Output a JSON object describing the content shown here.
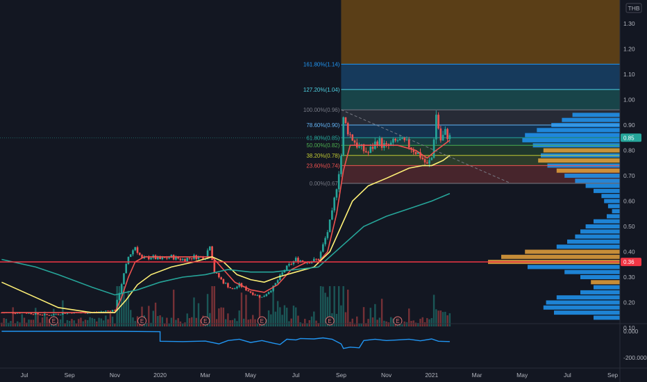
{
  "chart_data": {
    "type": "candlestick",
    "currency": "THB",
    "price_axis": {
      "range": [
        0.13,
        1.42
      ],
      "ticks": [
        "1.30",
        "1.20",
        "1.10",
        "1.00",
        "0.90",
        "0.80",
        "0.70",
        "0.60",
        "0.50",
        "0.40",
        "0.30",
        "0.20",
        "0.10"
      ]
    },
    "indicator_axis": {
      "range": [
        -235000,
        25000
      ],
      "ticks": [
        "0.000",
        "-200.000"
      ]
    },
    "time_axis": {
      "labels": [
        {
          "t": 0.0,
          "label": "Jul"
        },
        {
          "t": 2.0,
          "label": "Sep"
        },
        {
          "t": 4.0,
          "label": "Nov"
        },
        {
          "t": 6.0,
          "label": "2020"
        },
        {
          "t": 8.0,
          "label": "Mar"
        },
        {
          "t": 10.0,
          "label": "May"
        },
        {
          "t": 12.0,
          "label": "Jul"
        },
        {
          "t": 14.0,
          "label": "Sep"
        },
        {
          "t": 16.0,
          "label": "Nov"
        },
        {
          "t": 18.0,
          "label": "2021"
        },
        {
          "t": 20.0,
          "label": "Mar"
        },
        {
          "t": 22.0,
          "label": "May"
        },
        {
          "t": 24.0,
          "label": "Jul"
        },
        {
          "t": 26.0,
          "label": "Sep"
        }
      ]
    },
    "price_path": [
      [
        -1,
        0.16
      ],
      [
        0.0,
        0.16
      ],
      [
        1.0,
        0.15
      ],
      [
        2.0,
        0.16
      ],
      [
        3.0,
        0.16
      ],
      [
        4.0,
        0.17
      ],
      [
        4.2,
        0.24
      ],
      [
        4.4,
        0.31
      ],
      [
        4.6,
        0.38
      ],
      [
        4.9,
        0.42
      ],
      [
        5.2,
        0.37
      ],
      [
        5.6,
        0.38
      ],
      [
        6.0,
        0.37
      ],
      [
        6.5,
        0.38
      ],
      [
        7.0,
        0.37
      ],
      [
        7.5,
        0.38
      ],
      [
        8.0,
        0.38
      ],
      [
        8.2,
        0.43
      ],
      [
        8.4,
        0.32
      ],
      [
        8.8,
        0.28
      ],
      [
        9.2,
        0.25
      ],
      [
        9.5,
        0.27
      ],
      [
        10.0,
        0.24
      ],
      [
        10.5,
        0.22
      ],
      [
        11.0,
        0.26
      ],
      [
        11.5,
        0.33
      ],
      [
        12.0,
        0.37
      ],
      [
        12.5,
        0.36
      ],
      [
        13.0,
        0.37
      ],
      [
        13.4,
        0.48
      ],
      [
        13.6,
        0.55
      ],
      [
        13.8,
        0.66
      ],
      [
        14.0,
        0.78
      ],
      [
        14.1,
        0.92
      ],
      [
        14.4,
        0.86
      ],
      [
        14.8,
        0.81
      ],
      [
        15.2,
        0.79
      ],
      [
        15.6,
        0.84
      ],
      [
        16.0,
        0.81
      ],
      [
        16.5,
        0.84
      ],
      [
        17.0,
        0.82
      ],
      [
        17.5,
        0.78
      ],
      [
        17.8,
        0.74
      ],
      [
        18.0,
        0.77
      ],
      [
        18.2,
        0.94
      ],
      [
        18.4,
        0.84
      ],
      [
        18.6,
        0.87
      ],
      [
        18.8,
        0.85
      ]
    ],
    "moving_averages": [
      {
        "color": "#ef5350",
        "path": [
          [
            -1,
            0.16
          ],
          [
            4.0,
            0.16
          ],
          [
            4.3,
            0.22
          ],
          [
            4.6,
            0.3
          ],
          [
            4.9,
            0.36
          ],
          [
            5.3,
            0.38
          ],
          [
            6.0,
            0.38
          ],
          [
            7.5,
            0.38
          ],
          [
            8.3,
            0.38
          ],
          [
            8.8,
            0.33
          ],
          [
            9.3,
            0.28
          ],
          [
            10.0,
            0.25
          ],
          [
            10.6,
            0.24
          ],
          [
            11.2,
            0.27
          ],
          [
            11.8,
            0.33
          ],
          [
            12.5,
            0.36
          ],
          [
            13.0,
            0.36
          ],
          [
            13.4,
            0.4
          ],
          [
            13.8,
            0.55
          ],
          [
            14.1,
            0.72
          ],
          [
            14.4,
            0.82
          ],
          [
            14.8,
            0.82
          ],
          [
            15.5,
            0.82
          ],
          [
            16.5,
            0.82
          ],
          [
            17.3,
            0.8
          ],
          [
            17.8,
            0.77
          ],
          [
            18.2,
            0.8
          ],
          [
            18.8,
            0.84
          ]
        ]
      },
      {
        "color": "#fff176",
        "path": [
          [
            -1,
            0.28
          ],
          [
            0.5,
            0.22
          ],
          [
            1.5,
            0.18
          ],
          [
            3.0,
            0.16
          ],
          [
            4.0,
            0.16
          ],
          [
            4.5,
            0.21
          ],
          [
            5.0,
            0.27
          ],
          [
            5.6,
            0.31
          ],
          [
            6.5,
            0.34
          ],
          [
            7.5,
            0.36
          ],
          [
            8.3,
            0.38
          ],
          [
            8.8,
            0.36
          ],
          [
            9.4,
            0.31
          ],
          [
            10.0,
            0.29
          ],
          [
            10.6,
            0.28
          ],
          [
            11.2,
            0.3
          ],
          [
            12.0,
            0.32
          ],
          [
            12.8,
            0.34
          ],
          [
            13.5,
            0.4
          ],
          [
            14.0,
            0.5
          ],
          [
            14.5,
            0.6
          ],
          [
            15.2,
            0.66
          ],
          [
            16.0,
            0.69
          ],
          [
            17.0,
            0.73
          ],
          [
            17.6,
            0.74
          ],
          [
            18.0,
            0.74
          ],
          [
            18.5,
            0.76
          ],
          [
            18.8,
            0.78
          ]
        ]
      },
      {
        "color": "#26a69a",
        "path": [
          [
            -1,
            0.37
          ],
          [
            0.5,
            0.34
          ],
          [
            1.5,
            0.31
          ],
          [
            3.0,
            0.26
          ],
          [
            4.0,
            0.23
          ],
          [
            5.0,
            0.25
          ],
          [
            6.0,
            0.28
          ],
          [
            7.0,
            0.3
          ],
          [
            8.0,
            0.31
          ],
          [
            9.0,
            0.33
          ],
          [
            10.0,
            0.32
          ],
          [
            11.0,
            0.32
          ],
          [
            12.0,
            0.33
          ],
          [
            13.0,
            0.34
          ],
          [
            14.0,
            0.42
          ],
          [
            15.0,
            0.5
          ],
          [
            16.0,
            0.54
          ],
          [
            17.0,
            0.57
          ],
          [
            18.0,
            0.6
          ],
          [
            18.8,
            0.63
          ]
        ]
      }
    ],
    "fibonacci": {
      "anchor_high": 0.96,
      "anchor_low": 0.67,
      "levels": [
        {
          "label": "161.80%(1.14)",
          "value": 1.14,
          "color": "#2196f3",
          "fill": "rgba(33,150,243,0.28)"
        },
        {
          "label": "127.20%(1.04)",
          "value": 1.04,
          "color": "#4dd0e1",
          "fill": "rgba(38,166,154,0.32)"
        },
        {
          "label": "100.00%(0.96)",
          "value": 0.96,
          "color": "#787b86",
          "fill": "rgba(120,123,134,0.20)"
        },
        {
          "label": "78.60%(0.90)",
          "value": 0.9,
          "color": "#64b5f6",
          "fill": "rgba(33,150,243,0.22)"
        },
        {
          "label": "61.80%(0.85)",
          "value": 0.85,
          "color": "#26a69a",
          "fill": "rgba(38,166,154,0.25)"
        },
        {
          "label": "50.00%(0.82)",
          "value": 0.82,
          "color": "#4caf50",
          "fill": "rgba(76,175,80,0.22)"
        },
        {
          "label": "38.20%(0.78)",
          "value": 0.78,
          "color": "#c0ca33",
          "fill": "rgba(139,195,74,0.22)"
        },
        {
          "label": "23.60%(0.74)",
          "value": 0.74,
          "color": "#ef5350",
          "fill": "rgba(239,83,80,0.24)"
        },
        {
          "label": "0.00%(0.67)",
          "value": 0.67,
          "color": "#787b86",
          "fill": null
        }
      ],
      "upper_zone": {
        "from": 1.14,
        "to": 1.42,
        "fill": "rgba(255,152,0,0.30)"
      }
    },
    "trend_line": {
      "from": [
        14.0,
        0.96
      ],
      "to": [
        21.5,
        0.67
      ],
      "color": "#787b86"
    },
    "horizontal_line": {
      "value": 0.36,
      "label": "0.36",
      "color": "#f23645"
    },
    "last_price": {
      "value": 0.85,
      "label": "0.85",
      "color": "#26a69a"
    },
    "earnings_markers": [
      {
        "t": 1.3,
        "label": "E"
      },
      {
        "t": 5.2,
        "label": "E"
      },
      {
        "t": 8.0,
        "label": "E"
      },
      {
        "t": 10.5,
        "label": "E"
      },
      {
        "t": 13.5,
        "label": "E"
      },
      {
        "t": 16.5,
        "label": "E"
      }
    ],
    "volume_profile": [
      {
        "value": 0.94,
        "length": 0.36,
        "color": "#2196f3"
      },
      {
        "value": 0.92,
        "length": 0.44,
        "color": "#2196f3"
      },
      {
        "value": 0.9,
        "length": 0.52,
        "color": "#2196f3"
      },
      {
        "value": 0.88,
        "length": 0.63,
        "color": "#2196f3"
      },
      {
        "value": 0.86,
        "length": 0.72,
        "color": "#2196f3"
      },
      {
        "value": 0.84,
        "length": 0.74,
        "color": "#2196f3"
      },
      {
        "value": 0.82,
        "length": 0.66,
        "color": "#2196f3"
      },
      {
        "value": 0.8,
        "length": 0.58,
        "color": "#e6a23c"
      },
      {
        "value": 0.78,
        "length": 0.6,
        "color": "#2196f3"
      },
      {
        "value": 0.76,
        "length": 0.62,
        "color": "#e6a23c"
      },
      {
        "value": 0.74,
        "length": 0.55,
        "color": "#2196f3"
      },
      {
        "value": 0.72,
        "length": 0.48,
        "color": "#e6a23c"
      },
      {
        "value": 0.7,
        "length": 0.42,
        "color": "#2196f3"
      },
      {
        "value": 0.68,
        "length": 0.34,
        "color": "#2196f3"
      },
      {
        "value": 0.66,
        "length": 0.26,
        "color": "#2196f3"
      },
      {
        "value": 0.64,
        "length": 0.2,
        "color": "#2196f3"
      },
      {
        "value": 0.62,
        "length": 0.14,
        "color": "#2196f3"
      },
      {
        "value": 0.6,
        "length": 0.12,
        "color": "#2196f3"
      },
      {
        "value": 0.58,
        "length": 0.09,
        "color": "#2196f3"
      },
      {
        "value": 0.56,
        "length": 0.06,
        "color": "#2196f3"
      },
      {
        "value": 0.54,
        "length": 0.1,
        "color": "#2196f3"
      },
      {
        "value": 0.52,
        "length": 0.2,
        "color": "#2196f3"
      },
      {
        "value": 0.5,
        "length": 0.26,
        "color": "#2196f3"
      },
      {
        "value": 0.48,
        "length": 0.3,
        "color": "#2196f3"
      },
      {
        "value": 0.46,
        "length": 0.34,
        "color": "#2196f3"
      },
      {
        "value": 0.44,
        "length": 0.4,
        "color": "#2196f3"
      },
      {
        "value": 0.42,
        "length": 0.48,
        "color": "#2196f3"
      },
      {
        "value": 0.4,
        "length": 0.72,
        "color": "#e6a23c"
      },
      {
        "value": 0.38,
        "length": 0.9,
        "color": "#e6a23c"
      },
      {
        "value": 0.36,
        "length": 1.0,
        "color": "#e6a23c"
      },
      {
        "value": 0.34,
        "length": 0.7,
        "color": "#2196f3"
      },
      {
        "value": 0.32,
        "length": 0.42,
        "color": "#2196f3"
      },
      {
        "value": 0.3,
        "length": 0.3,
        "color": "#2196f3"
      },
      {
        "value": 0.28,
        "length": 0.22,
        "color": "#e6a23c"
      },
      {
        "value": 0.26,
        "length": 0.2,
        "color": "#2196f3"
      },
      {
        "value": 0.24,
        "length": 0.3,
        "color": "#2196f3"
      },
      {
        "value": 0.22,
        "length": 0.48,
        "color": "#2196f3"
      },
      {
        "value": 0.2,
        "length": 0.56,
        "color": "#2196f3"
      },
      {
        "value": 0.18,
        "length": 0.58,
        "color": "#2196f3"
      },
      {
        "value": 0.16,
        "length": 0.5,
        "color": "#2196f3"
      },
      {
        "value": 0.14,
        "length": 0.2,
        "color": "#2196f3"
      }
    ],
    "indicator_line": {
      "color": "#2196f3",
      "path": [
        [
          -1,
          0
        ],
        [
          4.0,
          0
        ],
        [
          6.0,
          -3000
        ],
        [
          6.0,
          -75000
        ],
        [
          7.0,
          -78000
        ],
        [
          8.0,
          -74000
        ],
        [
          8.6,
          -95000
        ],
        [
          9.0,
          -70000
        ],
        [
          9.5,
          -60000
        ],
        [
          10.0,
          -85000
        ],
        [
          10.5,
          -70000
        ],
        [
          11.0,
          -90000
        ],
        [
          11.3,
          -100000
        ],
        [
          11.6,
          -60000
        ],
        [
          12.0,
          -65000
        ],
        [
          12.2,
          -55000
        ],
        [
          12.8,
          -58000
        ],
        [
          13.2,
          -50000
        ],
        [
          13.6,
          -60000
        ],
        [
          14.0,
          -95000
        ],
        [
          14.1,
          -130000
        ],
        [
          14.4,
          -120000
        ],
        [
          14.8,
          -125000
        ],
        [
          15.0,
          -70000
        ],
        [
          15.5,
          -60000
        ],
        [
          16.0,
          -70000
        ],
        [
          16.5,
          -65000
        ],
        [
          17.0,
          -60000
        ],
        [
          17.5,
          -72000
        ],
        [
          18.0,
          -58000
        ],
        [
          18.3,
          -75000
        ],
        [
          18.8,
          -78000
        ]
      ]
    }
  }
}
